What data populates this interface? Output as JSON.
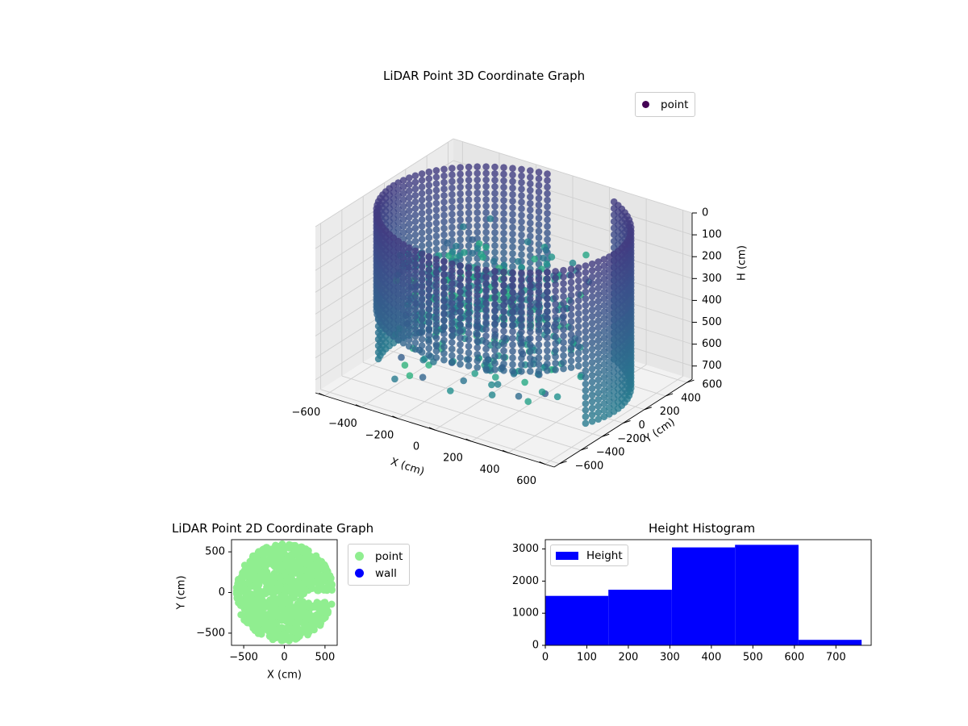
{
  "chart_data": [
    {
      "type": "scatter3d",
      "title": "LiDAR Point 3D Coordinate Graph",
      "xlabel": "X (cm)",
      "ylabel": "Y (cm)",
      "zlabel": "H (cm)",
      "xticks": [
        "−600",
        "−400",
        "−200",
        "0",
        "200",
        "400",
        "600"
      ],
      "yticks": [
        "600",
        "400",
        "200",
        "0",
        "−200",
        "−400",
        "−600"
      ],
      "zticks": [
        "0",
        "100",
        "200",
        "300",
        "400",
        "500",
        "600",
        "700"
      ],
      "xlim": [
        -650,
        650
      ],
      "ylim": [
        -650,
        650
      ],
      "zlim": [
        0,
        760
      ],
      "legend": [
        {
          "name": "point",
          "color": "#440154"
        }
      ],
      "legend_position": "top-right",
      "grid": true,
      "colormap": "viridis",
      "shape": "cylindrical point cloud, radius approx 600 cm, heights 0 to 760 cm"
    },
    {
      "type": "scatter",
      "title": "LiDAR Point 2D Coordinate Graph",
      "xlabel": "X (cm)",
      "ylabel": "Y (cm)",
      "xticks": [
        "−500",
        "0",
        "500"
      ],
      "yticks": [
        "500",
        "0",
        "−500"
      ],
      "xlim": [
        -650,
        650
      ],
      "ylim": [
        -650,
        650
      ],
      "legend": [
        {
          "name": "point",
          "color": "#90ee90"
        },
        {
          "name": "wall",
          "color": "#0000ff"
        }
      ],
      "legend_position": "outside right",
      "shape": "filled disc, radius approx 600 cm"
    },
    {
      "type": "bar",
      "title": "Height Histogram",
      "bins": [
        {
          "from": 0,
          "to": 152,
          "count": 1540
        },
        {
          "from": 152,
          "to": 305,
          "count": 1730
        },
        {
          "from": 305,
          "to": 457,
          "count": 3050
        },
        {
          "from": 457,
          "to": 610,
          "count": 3130
        },
        {
          "from": 610,
          "to": 762,
          "count": 170
        }
      ],
      "xticks": [
        "0",
        "100",
        "200",
        "300",
        "400",
        "500",
        "600",
        "700"
      ],
      "yticks": [
        "0",
        "1000",
        "2000",
        "3000"
      ],
      "xlim": [
        0,
        785
      ],
      "ylim": [
        0,
        3290
      ],
      "legend": [
        {
          "name": "Height",
          "color": "#0000ff"
        }
      ],
      "legend_position": "top-left"
    }
  ]
}
